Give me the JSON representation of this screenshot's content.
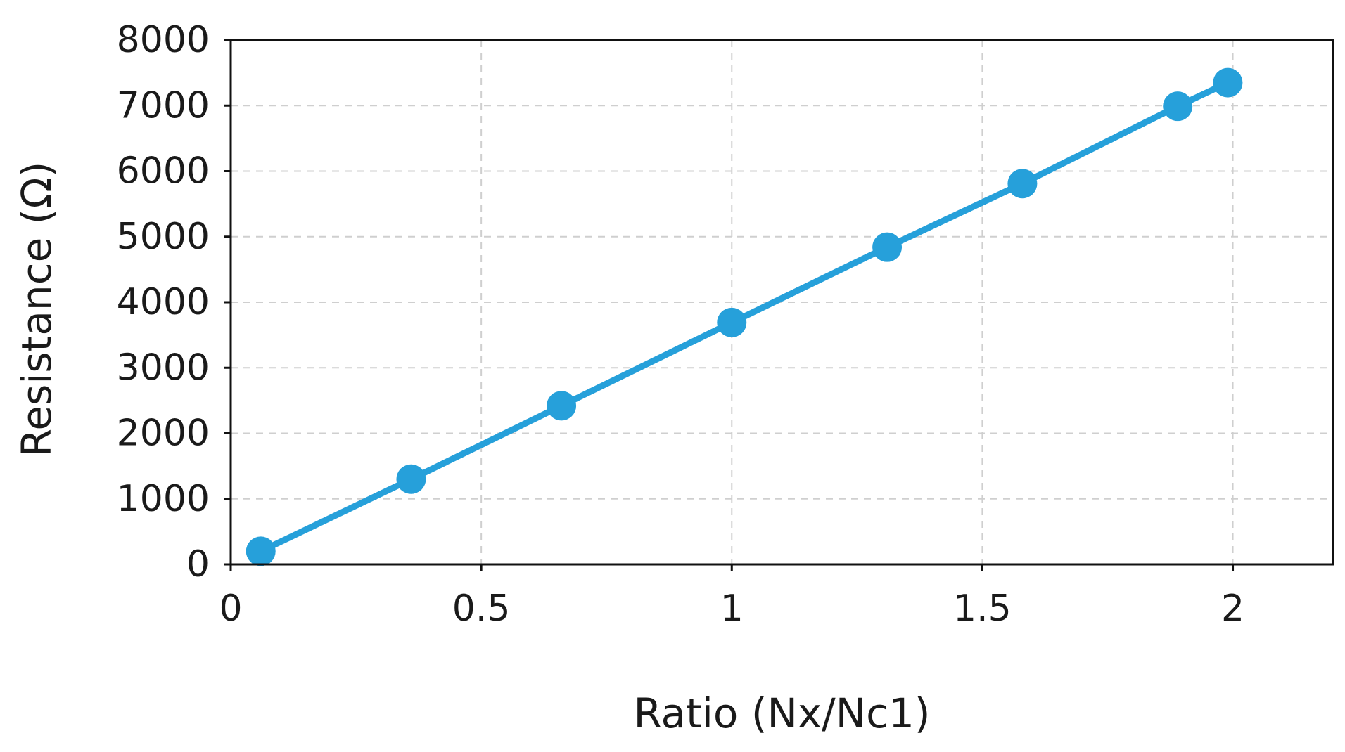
{
  "chart_data": {
    "type": "line",
    "title": "",
    "xlabel": "Ratio (Nx/Nc1)",
    "ylabel": "Resistance (Ω)",
    "xlim": [
      0,
      2.2
    ],
    "ylim": [
      0,
      8000
    ],
    "x_ticks": [
      0,
      0.5,
      1,
      1.5,
      2
    ],
    "x_tick_labels": [
      "0",
      "0.5",
      "1",
      "1.5",
      "2"
    ],
    "y_ticks": [
      0,
      1000,
      2000,
      3000,
      4000,
      5000,
      6000,
      7000,
      8000
    ],
    "y_tick_labels": [
      "0",
      "1000",
      "2000",
      "3000",
      "4000",
      "5000",
      "6000",
      "7000",
      "8000"
    ],
    "grid": true,
    "legend": "none",
    "series": [
      {
        "color": "#26a0da",
        "marker": "circle",
        "x": [
          0.06,
          0.36,
          0.66,
          1.0,
          1.31,
          1.58,
          1.89,
          1.99
        ],
        "y": [
          200,
          1300,
          2420,
          3690,
          4840,
          5810,
          6990,
          7350
        ]
      }
    ]
  }
}
